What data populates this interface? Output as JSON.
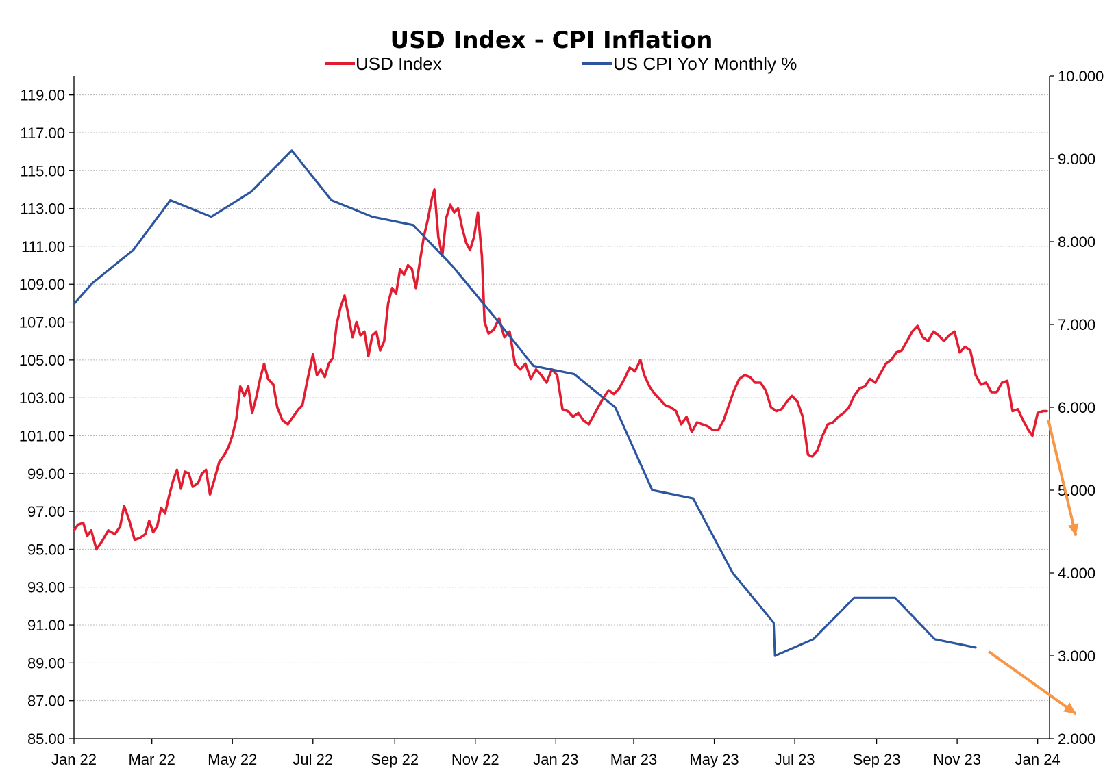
{
  "chart_data": {
    "type": "line",
    "title": "USD Index - CPI Inflation",
    "legend": {
      "placement": "top",
      "entries": [
        {
          "name": "USD Index",
          "color": "#e31d31",
          "axis": "left"
        },
        {
          "name": "US CPI YoY Monthly %",
          "color": "#2c55a0",
          "axis": "right"
        }
      ]
    },
    "x_axis": {
      "type": "date",
      "range": [
        "2022-01-01",
        "2024-01-10"
      ],
      "ticks": [
        {
          "label": "Jan 22",
          "date": "2022-01-01"
        },
        {
          "label": "Mar 22",
          "date": "2022-03-01"
        },
        {
          "label": "May 22",
          "date": "2022-05-01"
        },
        {
          "label": "Jul 22",
          "date": "2022-07-01"
        },
        {
          "label": "Sep 22",
          "date": "2022-09-01"
        },
        {
          "label": "Nov 22",
          "date": "2022-11-01"
        },
        {
          "label": "Jan 23",
          "date": "2023-01-01"
        },
        {
          "label": "Mar 23",
          "date": "2023-03-01"
        },
        {
          "label": "May 23",
          "date": "2023-05-01"
        },
        {
          "label": "Jul 23",
          "date": "2023-07-01"
        },
        {
          "label": "Sep 23",
          "date": "2023-09-01"
        },
        {
          "label": "Nov 23",
          "date": "2023-11-01"
        },
        {
          "label": "Jan 24",
          "date": "2024-01-01"
        }
      ]
    },
    "y_axis_left": {
      "range": [
        85,
        120
      ],
      "ticks": [
        "85.00",
        "87.00",
        "89.00",
        "91.00",
        "93.00",
        "95.00",
        "97.00",
        "99.00",
        "101.00",
        "103.00",
        "105.00",
        "107.00",
        "109.00",
        "111.00",
        "113.00",
        "115.00",
        "117.00",
        "119.00"
      ],
      "grid": true
    },
    "y_axis_right": {
      "range": [
        2,
        10
      ],
      "ticks": [
        "2.000",
        "3.000",
        "4.000",
        "5.000",
        "6.000",
        "7.000",
        "8.000",
        "9.000",
        "10.000"
      ]
    },
    "series": [
      {
        "name": "USD Index",
        "axis": "left",
        "color": "#e31d31",
        "points": [
          [
            "2022-01-01",
            96.0
          ],
          [
            "2022-01-04",
            96.3
          ],
          [
            "2022-01-08",
            96.4
          ],
          [
            "2022-01-11",
            95.7
          ],
          [
            "2022-01-14",
            96.0
          ],
          [
            "2022-01-18",
            95.0
          ],
          [
            "2022-01-22",
            95.4
          ],
          [
            "2022-01-27",
            96.0
          ],
          [
            "2022-02-01",
            95.8
          ],
          [
            "2022-02-05",
            96.2
          ],
          [
            "2022-02-08",
            97.3
          ],
          [
            "2022-02-12",
            96.5
          ],
          [
            "2022-02-16",
            95.5
          ],
          [
            "2022-02-20",
            95.6
          ],
          [
            "2022-02-24",
            95.8
          ],
          [
            "2022-02-27",
            96.5
          ],
          [
            "2022-03-02",
            95.9
          ],
          [
            "2022-03-05",
            96.2
          ],
          [
            "2022-03-08",
            97.2
          ],
          [
            "2022-03-11",
            96.9
          ],
          [
            "2022-03-14",
            97.8
          ],
          [
            "2022-03-17",
            98.6
          ],
          [
            "2022-03-20",
            99.2
          ],
          [
            "2022-03-23",
            98.2
          ],
          [
            "2022-03-26",
            99.1
          ],
          [
            "2022-03-29",
            99.0
          ],
          [
            "2022-04-01",
            98.3
          ],
          [
            "2022-04-05",
            98.5
          ],
          [
            "2022-04-08",
            99.0
          ],
          [
            "2022-04-11",
            99.2
          ],
          [
            "2022-04-14",
            97.9
          ],
          [
            "2022-04-17",
            98.6
          ],
          [
            "2022-04-21",
            99.6
          ],
          [
            "2022-04-25",
            100.0
          ],
          [
            "2022-04-28",
            100.4
          ],
          [
            "2022-05-01",
            101.0
          ],
          [
            "2022-05-04",
            101.9
          ],
          [
            "2022-05-07",
            103.6
          ],
          [
            "2022-05-10",
            103.1
          ],
          [
            "2022-05-13",
            103.6
          ],
          [
            "2022-05-16",
            102.2
          ],
          [
            "2022-05-19",
            103.0
          ],
          [
            "2022-05-22",
            104.0
          ],
          [
            "2022-05-25",
            104.8
          ],
          [
            "2022-05-28",
            104.0
          ],
          [
            "2022-06-01",
            103.7
          ],
          [
            "2022-06-04",
            102.5
          ],
          [
            "2022-06-08",
            101.8
          ],
          [
            "2022-06-12",
            101.6
          ],
          [
            "2022-06-16",
            102.0
          ],
          [
            "2022-06-20",
            102.4
          ],
          [
            "2022-06-23",
            102.6
          ],
          [
            "2022-06-27",
            104.0
          ],
          [
            "2022-07-01",
            105.3
          ],
          [
            "2022-07-04",
            104.2
          ],
          [
            "2022-07-07",
            104.5
          ],
          [
            "2022-07-10",
            104.1
          ],
          [
            "2022-07-13",
            104.8
          ],
          [
            "2022-07-16",
            105.1
          ],
          [
            "2022-07-19",
            106.9
          ],
          [
            "2022-07-22",
            107.8
          ],
          [
            "2022-07-25",
            108.4
          ],
          [
            "2022-07-28",
            107.3
          ],
          [
            "2022-07-31",
            106.2
          ],
          [
            "2022-08-03",
            107.0
          ],
          [
            "2022-08-06",
            106.3
          ],
          [
            "2022-08-09",
            106.5
          ],
          [
            "2022-08-12",
            105.2
          ],
          [
            "2022-08-15",
            106.3
          ],
          [
            "2022-08-18",
            106.5
          ],
          [
            "2022-08-21",
            105.5
          ],
          [
            "2022-08-24",
            106.0
          ],
          [
            "2022-08-27",
            108.0
          ],
          [
            "2022-08-30",
            108.8
          ],
          [
            "2022-09-02",
            108.5
          ],
          [
            "2022-09-05",
            109.8
          ],
          [
            "2022-09-08",
            109.5
          ],
          [
            "2022-09-11",
            110.0
          ],
          [
            "2022-09-14",
            109.8
          ],
          [
            "2022-09-17",
            108.8
          ],
          [
            "2022-09-20",
            110.2
          ],
          [
            "2022-09-23",
            111.5
          ],
          [
            "2022-09-26",
            112.4
          ],
          [
            "2022-09-29",
            113.5
          ],
          [
            "2022-10-01",
            114.0
          ],
          [
            "2022-10-04",
            111.5
          ],
          [
            "2022-10-07",
            110.5
          ],
          [
            "2022-10-10",
            112.5
          ],
          [
            "2022-10-13",
            113.2
          ],
          [
            "2022-10-16",
            112.8
          ],
          [
            "2022-10-19",
            113.0
          ],
          [
            "2022-10-22",
            112.0
          ],
          [
            "2022-10-25",
            111.2
          ],
          [
            "2022-10-28",
            110.8
          ],
          [
            "2022-10-31",
            111.5
          ],
          [
            "2022-11-03",
            112.8
          ],
          [
            "2022-11-06",
            110.5
          ],
          [
            "2022-11-08",
            107.0
          ],
          [
            "2022-11-11",
            106.4
          ],
          [
            "2022-11-15",
            106.6
          ],
          [
            "2022-11-19",
            107.2
          ],
          [
            "2022-11-23",
            106.2
          ],
          [
            "2022-11-27",
            106.5
          ],
          [
            "2022-12-01",
            104.8
          ],
          [
            "2022-12-05",
            104.5
          ],
          [
            "2022-12-09",
            104.8
          ],
          [
            "2022-12-13",
            104.0
          ],
          [
            "2022-12-17",
            104.5
          ],
          [
            "2022-12-21",
            104.2
          ],
          [
            "2022-12-25",
            103.8
          ],
          [
            "2022-12-29",
            104.5
          ],
          [
            "2023-01-02",
            104.2
          ],
          [
            "2023-01-06",
            102.4
          ],
          [
            "2023-01-10",
            102.3
          ],
          [
            "2023-01-14",
            102.0
          ],
          [
            "2023-01-18",
            102.2
          ],
          [
            "2023-01-22",
            101.8
          ],
          [
            "2023-01-26",
            101.6
          ],
          [
            "2023-02-02",
            102.5
          ],
          [
            "2023-02-06",
            103.0
          ],
          [
            "2023-02-10",
            103.4
          ],
          [
            "2023-02-14",
            103.2
          ],
          [
            "2023-02-18",
            103.5
          ],
          [
            "2023-02-22",
            104.0
          ],
          [
            "2023-02-26",
            104.6
          ],
          [
            "2023-03-02",
            104.4
          ],
          [
            "2023-03-06",
            105.0
          ],
          [
            "2023-03-09",
            104.2
          ],
          [
            "2023-03-13",
            103.6
          ],
          [
            "2023-03-17",
            103.2
          ],
          [
            "2023-03-21",
            102.9
          ],
          [
            "2023-03-25",
            102.6
          ],
          [
            "2023-03-29",
            102.5
          ],
          [
            "2023-04-02",
            102.3
          ],
          [
            "2023-04-06",
            101.6
          ],
          [
            "2023-04-10",
            102.0
          ],
          [
            "2023-04-14",
            101.2
          ],
          [
            "2023-04-18",
            101.7
          ],
          [
            "2023-04-22",
            101.6
          ],
          [
            "2023-04-26",
            101.5
          ],
          [
            "2023-04-30",
            101.3
          ],
          [
            "2023-05-04",
            101.3
          ],
          [
            "2023-05-08",
            101.8
          ],
          [
            "2023-05-12",
            102.6
          ],
          [
            "2023-05-16",
            103.4
          ],
          [
            "2023-05-20",
            104.0
          ],
          [
            "2023-05-24",
            104.2
          ],
          [
            "2023-05-28",
            104.1
          ],
          [
            "2023-06-01",
            103.8
          ],
          [
            "2023-06-05",
            103.8
          ],
          [
            "2023-06-09",
            103.4
          ],
          [
            "2023-06-13",
            102.5
          ],
          [
            "2023-06-17",
            102.3
          ],
          [
            "2023-06-21",
            102.4
          ],
          [
            "2023-06-25",
            102.8
          ],
          [
            "2023-06-29",
            103.1
          ],
          [
            "2023-07-03",
            102.8
          ],
          [
            "2023-07-07",
            102.0
          ],
          [
            "2023-07-11",
            100.0
          ],
          [
            "2023-07-14",
            99.9
          ],
          [
            "2023-07-18",
            100.2
          ],
          [
            "2023-07-22",
            101.0
          ],
          [
            "2023-07-26",
            101.6
          ],
          [
            "2023-07-30",
            101.7
          ],
          [
            "2023-08-03",
            102.0
          ],
          [
            "2023-08-07",
            102.2
          ],
          [
            "2023-08-11",
            102.5
          ],
          [
            "2023-08-15",
            103.1
          ],
          [
            "2023-08-19",
            103.5
          ],
          [
            "2023-08-23",
            103.6
          ],
          [
            "2023-08-27",
            104.0
          ],
          [
            "2023-08-31",
            103.8
          ],
          [
            "2023-09-04",
            104.3
          ],
          [
            "2023-09-08",
            104.8
          ],
          [
            "2023-09-12",
            105.0
          ],
          [
            "2023-09-16",
            105.4
          ],
          [
            "2023-09-20",
            105.5
          ],
          [
            "2023-09-24",
            106.0
          ],
          [
            "2023-09-28",
            106.5
          ],
          [
            "2023-10-02",
            106.8
          ],
          [
            "2023-10-06",
            106.2
          ],
          [
            "2023-10-10",
            106.0
          ],
          [
            "2023-10-14",
            106.5
          ],
          [
            "2023-10-18",
            106.3
          ],
          [
            "2023-10-22",
            106.0
          ],
          [
            "2023-10-26",
            106.3
          ],
          [
            "2023-10-30",
            106.5
          ],
          [
            "2023-11-03",
            105.4
          ],
          [
            "2023-11-07",
            105.7
          ],
          [
            "2023-11-11",
            105.5
          ],
          [
            "2023-11-15",
            104.2
          ],
          [
            "2023-11-19",
            103.7
          ],
          [
            "2023-11-23",
            103.8
          ],
          [
            "2023-11-27",
            103.3
          ],
          [
            "2023-12-01",
            103.3
          ],
          [
            "2023-12-05",
            103.8
          ],
          [
            "2023-12-09",
            103.9
          ],
          [
            "2023-12-13",
            102.3
          ],
          [
            "2023-12-17",
            102.4
          ],
          [
            "2023-12-21",
            101.8
          ],
          [
            "2023-12-25",
            101.3
          ],
          [
            "2023-12-28",
            101.0
          ],
          [
            "2024-01-01",
            102.2
          ],
          [
            "2024-01-05",
            102.3
          ],
          [
            "2024-01-08",
            102.3
          ]
        ]
      },
      {
        "name": "US CPI YoY Monthly %",
        "axis": "right",
        "color": "#2c55a0",
        "points": [
          [
            "2022-01-01",
            7.25
          ],
          [
            "2022-01-15",
            7.5
          ],
          [
            "2022-02-15",
            7.9
          ],
          [
            "2022-03-15",
            8.5
          ],
          [
            "2022-04-15",
            8.3
          ],
          [
            "2022-05-15",
            8.6
          ],
          [
            "2022-06-15",
            9.1
          ],
          [
            "2022-07-15",
            8.5
          ],
          [
            "2022-08-15",
            8.3
          ],
          [
            "2022-09-15",
            8.2
          ],
          [
            "2022-10-15",
            7.7
          ],
          [
            "2022-11-15",
            7.1
          ],
          [
            "2022-12-15",
            6.5
          ],
          [
            "2023-01-15",
            6.4
          ],
          [
            "2023-02-15",
            6.0
          ],
          [
            "2023-03-15",
            5.0
          ],
          [
            "2023-04-15",
            4.9
          ],
          [
            "2023-05-15",
            4.0
          ],
          [
            "2023-06-15",
            3.4
          ],
          [
            "2023-06-16",
            3.0
          ],
          [
            "2023-07-15",
            3.2
          ],
          [
            "2023-08-15",
            3.7
          ],
          [
            "2023-09-15",
            3.7
          ],
          [
            "2023-10-15",
            3.2
          ],
          [
            "2023-11-15",
            3.1
          ]
        ]
      }
    ],
    "annotations": [
      {
        "type": "arrow",
        "color": "#f79646",
        "from": [
          "2024-01-09",
          5.85
        ],
        "to": [
          "2024-01-30",
          4.45
        ],
        "axis": "right"
      },
      {
        "type": "arrow",
        "color": "#f79646",
        "from": [
          "2023-11-25",
          3.05
        ],
        "to": [
          "2024-01-30",
          2.3
        ],
        "axis": "right"
      }
    ]
  }
}
